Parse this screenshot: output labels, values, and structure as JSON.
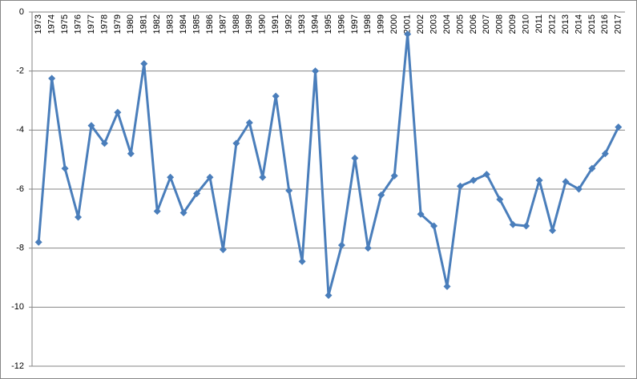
{
  "chart_data": {
    "type": "line",
    "categories": [
      "1973",
      "1974",
      "1975",
      "1976",
      "1977",
      "1978",
      "1979",
      "1980",
      "1981",
      "1982",
      "1983",
      "1984",
      "1985",
      "1986",
      "1987",
      "1988",
      "1989",
      "1990",
      "1991",
      "1992",
      "1993",
      "1994",
      "1995",
      "1996",
      "1997",
      "1998",
      "1999",
      "2000",
      "2001",
      "2002",
      "2003",
      "2004",
      "2005",
      "2006",
      "2007",
      "2008",
      "2009",
      "2010",
      "2011",
      "2012",
      "2013",
      "2014",
      "2015",
      "2016",
      "2017"
    ],
    "values": [
      -7.8,
      -2.25,
      -5.3,
      -6.95,
      -3.85,
      -4.45,
      -3.4,
      -4.8,
      -1.75,
      -6.75,
      -5.6,
      -6.8,
      -6.15,
      -5.6,
      -8.05,
      -4.45,
      -3.75,
      -5.6,
      -2.85,
      -6.05,
      -8.45,
      -2.0,
      -9.6,
      -7.9,
      -4.95,
      -8.0,
      -6.2,
      -5.55,
      -0.75,
      -6.85,
      -7.25,
      -9.3,
      -5.9,
      -5.7,
      -5.5,
      -6.35,
      -7.2,
      -7.25,
      -5.7,
      -7.4,
      -5.75,
      -6.0,
      -5.3,
      -4.8,
      -3.9
    ],
    "color": "#4a7ebb",
    "ylim": [
      -12,
      0
    ],
    "yticks": [
      -12,
      -10,
      -8,
      -6,
      -4,
      -2,
      0
    ],
    "grid": true
  }
}
